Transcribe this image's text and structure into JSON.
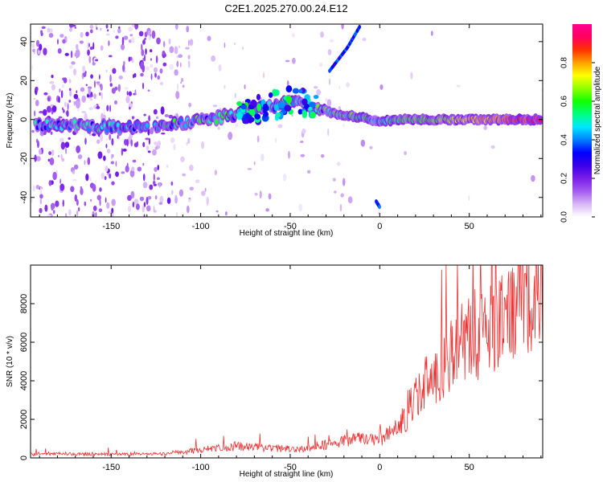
{
  "figure": {
    "title": "C2E1.2025.270.00.24.E12"
  },
  "chart_data": [
    {
      "type": "heatmap",
      "xlabel": "Height of straight line (km)",
      "ylabel": "Frequency (Hz)",
      "xlim": [
        -195,
        91
      ],
      "ylim": [
        -50,
        49
      ],
      "xticks": [
        -150,
        -100,
        -50,
        0,
        50
      ],
      "yticks": [
        -40,
        -20,
        0,
        20,
        40
      ],
      "colorbar": {
        "label": "Normalized spectral amplitude",
        "range": [
          0.0,
          1.0
        ],
        "ticks": [
          0.0,
          0.2,
          0.4,
          0.6,
          0.8
        ],
        "tick_labels": [
          "0.0",
          "0.2",
          "0.4",
          "0.6",
          "0.8"
        ],
        "colors": [
          "#ffffff",
          "#d8b6f6",
          "#a45cf0",
          "#7a1ee8",
          "#3a00e8",
          "#0000ff",
          "#0080ff",
          "#00e8ff",
          "#00ff80",
          "#10ff00",
          "#90ff00",
          "#ffff00",
          "#ffa000",
          "#ff3000",
          "#ff0060",
          "#ff0090"
        ]
      },
      "features": {
        "main_band_path": [
          [
            -192,
            -3
          ],
          [
            -170,
            -3
          ],
          [
            -145,
            -4
          ],
          [
            -130,
            -3
          ],
          [
            -110,
            -2
          ],
          [
            -90,
            1
          ],
          [
            -75,
            4
          ],
          [
            -55,
            8
          ],
          [
            -45,
            10
          ],
          [
            -35,
            6
          ],
          [
            -25,
            3
          ],
          [
            -10,
            1
          ],
          [
            0,
            -1
          ],
          [
            10,
            0
          ],
          [
            30,
            0
          ],
          [
            60,
            0
          ],
          [
            90,
            0
          ]
        ],
        "faint_track_upper": [
          [
            -28,
            25
          ],
          [
            -18,
            37
          ],
          [
            -11,
            48
          ]
        ],
        "faint_track_lower": [
          [
            -2,
            -42
          ],
          [
            0,
            -45
          ]
        ]
      }
    },
    {
      "type": "line",
      "xlabel": "Height of straight line (km)",
      "ylabel": "SNR (10 * v/v)",
      "xlim": [
        -195,
        91
      ],
      "ylim": [
        0,
        10000
      ],
      "xticks": [
        -150,
        -100,
        -50,
        0,
        50
      ],
      "yticks": [
        0,
        2000,
        4000,
        6000,
        8000
      ],
      "color": "#ee3232",
      "envelope": [
        {
          "x": -195,
          "y": 200
        },
        {
          "x": -150,
          "y": 200
        },
        {
          "x": -120,
          "y": 220
        },
        {
          "x": -105,
          "y": 350
        },
        {
          "x": -95,
          "y": 500
        },
        {
          "x": -80,
          "y": 600
        },
        {
          "x": -60,
          "y": 500
        },
        {
          "x": -45,
          "y": 450
        },
        {
          "x": -30,
          "y": 700
        },
        {
          "x": -20,
          "y": 900
        },
        {
          "x": -10,
          "y": 1000
        },
        {
          "x": 0,
          "y": 900
        },
        {
          "x": 10,
          "y": 1600
        },
        {
          "x": 15,
          "y": 2200
        },
        {
          "x": 20,
          "y": 3200
        },
        {
          "x": 30,
          "y": 4300
        },
        {
          "x": 40,
          "y": 5500
        },
        {
          "x": 50,
          "y": 6200
        },
        {
          "x": 60,
          "y": 6700
        },
        {
          "x": 70,
          "y": 7200
        },
        {
          "x": 80,
          "y": 8000
        },
        {
          "x": 91,
          "y": 8600
        }
      ]
    }
  ]
}
